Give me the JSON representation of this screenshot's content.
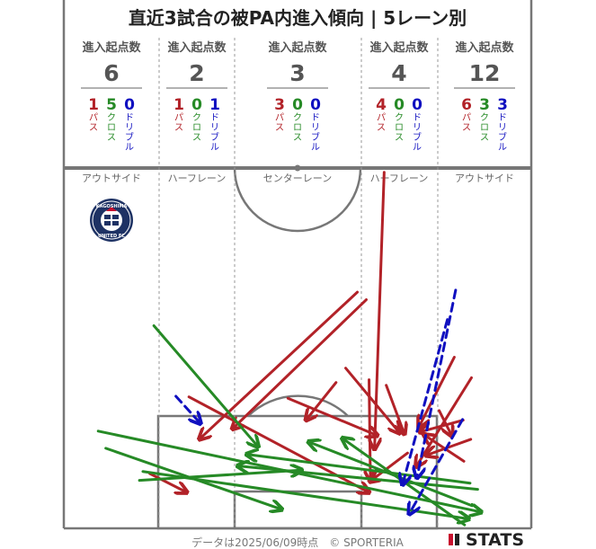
{
  "title": "直近3試合の被PA内進入傾向 | 5レーン別",
  "header_label": "進入起点数",
  "type_labels": [
    "パス",
    "クロス",
    "ドリブル"
  ],
  "colors": {
    "pass": "#b22228",
    "cross": "#268a26",
    "dribble": "#1010c0",
    "pitch": "#777777"
  },
  "lanes": [
    {
      "name": "アウトサイド",
      "total": "6",
      "pass": "1",
      "cross": "5",
      "dribble": "0"
    },
    {
      "name": "ハーフレーン",
      "total": "2",
      "pass": "1",
      "cross": "0",
      "dribble": "1"
    },
    {
      "name": "センターレーン",
      "total": "3",
      "pass": "3",
      "cross": "0",
      "dribble": "0"
    },
    {
      "name": "ハーフレーン",
      "total": "4",
      "pass": "4",
      "cross": "0",
      "dribble": "0"
    },
    {
      "name": "アウトサイド",
      "total": "12",
      "pass": "6",
      "cross": "3",
      "dribble": "3"
    }
  ],
  "team_logo": {
    "icon": "kagoshima-united-fc-crest",
    "text_top": "KAGOSHIMA",
    "text_bottom": "UNITED FC"
  },
  "footer": "データは2025/06/09時点　© SPORTERIA",
  "brand": "STATS",
  "chart_data": {
    "type": "scatter",
    "description_units": "pitch coordinates in meters: x = across pitch width (0 left touchline, 68 right touchline), y = distance from own goal line (0 goal line, 52.5 halfway line)",
    "xlim": [
      0,
      68
    ],
    "ylim": [
      0,
      52.5
    ],
    "lane_bounds_x": [
      13.84,
      24.84,
      43.16,
      54.16
    ],
    "series": [
      {
        "type": "pass",
        "arrows": [
          {
            "x1": 46.6,
            "y1": 52.0,
            "x2": 45.2,
            "y2": 11.7
          },
          {
            "x1": 42.7,
            "y1": 34.5,
            "x2": 19.8,
            "y2": 13.1
          },
          {
            "x1": 44.0,
            "y1": 33.4,
            "x2": 24.6,
            "y2": 14.6
          },
          {
            "x1": 41.0,
            "y1": 23.4,
            "x2": 48.8,
            "y2": 14.0
          },
          {
            "x1": 39.6,
            "y1": 21.3,
            "x2": 35.3,
            "y2": 15.9
          },
          {
            "x1": 32.6,
            "y1": 19.0,
            "x2": 45.5,
            "y2": 13.6
          },
          {
            "x1": 18.2,
            "y1": 19.2,
            "x2": 44.3,
            "y2": 5.3
          },
          {
            "x1": 12.5,
            "y1": 8.0,
            "x2": 17.8,
            "y2": 5.3
          },
          {
            "x1": 46.9,
            "y1": 20.9,
            "x2": 49.5,
            "y2": 13.9
          },
          {
            "x1": 44.4,
            "y1": 21.7,
            "x2": 44.6,
            "y2": 7.1
          },
          {
            "x1": 56.8,
            "y1": 25.0,
            "x2": 51.7,
            "y2": 14.9
          },
          {
            "x1": 54.6,
            "y1": 17.2,
            "x2": 56.4,
            "y2": 13.6
          },
          {
            "x1": 58.1,
            "y1": 15.8,
            "x2": 51.9,
            "y2": 14.1
          },
          {
            "x1": 58.2,
            "y1": 9.8,
            "x2": 52.5,
            "y2": 13.6
          },
          {
            "x1": 59.2,
            "y1": 13.0,
            "x2": 52.8,
            "y2": 10.7
          },
          {
            "x1": 59.3,
            "y1": 22.0,
            "x2": 51.3,
            "y2": 9.1
          },
          {
            "x1": 50.0,
            "y1": 11.0,
            "x2": 44.6,
            "y2": 6.9
          }
        ]
      },
      {
        "type": "cross",
        "arrows": [
          {
            "x1": 13.1,
            "y1": 29.6,
            "x2": 28.2,
            "y2": 12.0
          },
          {
            "x1": 5.0,
            "y1": 14.2,
            "x2": 60.6,
            "y2": 2.4
          },
          {
            "x1": 6.1,
            "y1": 11.7,
            "x2": 31.6,
            "y2": 2.8
          },
          {
            "x1": 11.5,
            "y1": 8.3,
            "x2": 58.8,
            "y2": 1.4
          },
          {
            "x1": 11.0,
            "y1": 7.0,
            "x2": 34.5,
            "y2": 8.5
          },
          {
            "x1": 59.1,
            "y1": 6.6,
            "x2": 26.7,
            "y2": 10.8
          },
          {
            "x1": 60.2,
            "y1": 5.7,
            "x2": 25.4,
            "y2": 9.1
          },
          {
            "x1": 59.4,
            "y1": 3.3,
            "x2": 35.7,
            "y2": 12.6
          },
          {
            "x1": 58.3,
            "y1": 0.5,
            "x2": 40.6,
            "y2": 13.1
          }
        ]
      },
      {
        "type": "dribble",
        "arrows": [
          {
            "x1": 16.3,
            "y1": 19.3,
            "x2": 19.8,
            "y2": 15.4
          },
          {
            "x1": 57.0,
            "y1": 34.8,
            "x2": 51.4,
            "y2": 7.5
          },
          {
            "x1": 55.8,
            "y1": 30.5,
            "x2": 49.3,
            "y2": 6.5
          },
          {
            "x1": 58.0,
            "y1": 15.9,
            "x2": 50.3,
            "y2": 2.2
          }
        ]
      }
    ]
  }
}
